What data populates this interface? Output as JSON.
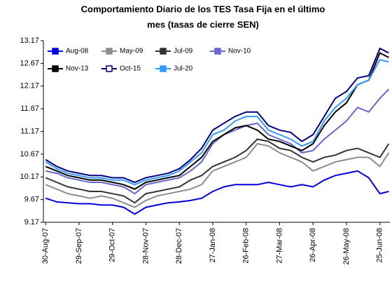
{
  "chart_data": {
    "type": "line",
    "title": [
      "Comportamiento Diario de los TES Tasa Fija en el último",
      "mes (tasas de cierre SEN)"
    ],
    "x": [
      "2007-08-30",
      "2007-09-09",
      "2007-09-19",
      "2007-09-29",
      "2007-10-09",
      "2007-10-19",
      "2007-10-29",
      "2007-11-08",
      "2007-11-18",
      "2007-11-28",
      "2007-12-08",
      "2007-12-18",
      "2007-12-28",
      "2008-01-07",
      "2008-01-17",
      "2008-01-27",
      "2008-02-06",
      "2008-02-16",
      "2008-02-26",
      "2008-03-07",
      "2008-03-17",
      "2008-03-27",
      "2008-04-06",
      "2008-04-16",
      "2008-04-26",
      "2008-05-06",
      "2008-05-16",
      "2008-05-26",
      "2008-06-05",
      "2008-06-15",
      "2008-06-25",
      "2008-07-03"
    ],
    "series": [
      {
        "name": "Aug-08",
        "color": "#0000e0",
        "values": [
          9.7,
          9.62,
          9.6,
          9.58,
          9.58,
          9.55,
          9.55,
          9.5,
          9.35,
          9.5,
          9.55,
          9.6,
          9.62,
          9.65,
          9.7,
          9.85,
          9.95,
          10.0,
          10.0,
          10.0,
          10.05,
          10.0,
          9.95,
          10.0,
          9.95,
          10.1,
          10.2,
          10.25,
          10.3,
          10.15,
          9.8,
          9.85
        ]
      },
      {
        "name": "May-09",
        "color": "#8c8c8c",
        "values": [
          10.0,
          9.9,
          9.8,
          9.75,
          9.7,
          9.75,
          9.7,
          9.6,
          9.5,
          9.65,
          9.75,
          9.8,
          9.85,
          9.9,
          10.0,
          10.3,
          10.4,
          10.5,
          10.6,
          10.9,
          10.85,
          10.7,
          10.6,
          10.5,
          10.3,
          10.4,
          10.5,
          10.55,
          10.6,
          10.6,
          10.4,
          10.7
        ]
      },
      {
        "name": "Jul-09",
        "color": "#333333",
        "values": [
          10.15,
          10.05,
          9.95,
          9.9,
          9.85,
          9.85,
          9.8,
          9.75,
          9.6,
          9.8,
          9.85,
          9.9,
          9.95,
          10.1,
          10.2,
          10.4,
          10.5,
          10.6,
          10.75,
          11.0,
          10.95,
          10.8,
          10.75,
          10.6,
          10.5,
          10.6,
          10.65,
          10.75,
          10.8,
          10.7,
          10.6,
          10.9
        ]
      },
      {
        "name": "Nov-10",
        "color": "#6666cc",
        "values": [
          10.3,
          10.25,
          10.15,
          10.1,
          10.05,
          10.05,
          10.0,
          9.95,
          9.8,
          10.0,
          10.05,
          10.1,
          10.15,
          10.3,
          10.5,
          10.9,
          11.1,
          11.2,
          11.3,
          11.35,
          11.1,
          11.0,
          10.9,
          10.7,
          10.75,
          11.0,
          11.2,
          11.4,
          11.7,
          11.6,
          11.9,
          12.1
        ]
      },
      {
        "name": "Nov-13",
        "color": "#000000",
        "values": [
          10.4,
          10.3,
          10.2,
          10.15,
          10.1,
          10.1,
          10.05,
          10.0,
          9.9,
          10.05,
          10.1,
          10.15,
          10.2,
          10.4,
          10.6,
          10.95,
          11.1,
          11.25,
          11.3,
          11.2,
          11.0,
          10.95,
          10.85,
          10.75,
          10.9,
          11.3,
          11.6,
          11.8,
          12.2,
          12.3,
          12.9,
          12.8
        ]
      },
      {
        "name": "Oct-15",
        "color": "#000080",
        "values": [
          10.55,
          10.4,
          10.3,
          10.25,
          10.2,
          10.2,
          10.15,
          10.15,
          10.05,
          10.15,
          10.2,
          10.25,
          10.35,
          10.55,
          10.8,
          11.2,
          11.35,
          11.5,
          11.6,
          11.6,
          11.3,
          11.2,
          11.15,
          10.95,
          11.1,
          11.5,
          11.9,
          12.05,
          12.35,
          12.4,
          13.0,
          12.9
        ]
      },
      {
        "name": "Jul-20",
        "color": "#3399ff",
        "values": [
          10.5,
          10.35,
          10.25,
          10.2,
          10.15,
          10.15,
          10.1,
          10.1,
          10.0,
          10.1,
          10.15,
          10.2,
          10.3,
          10.5,
          10.7,
          11.1,
          11.2,
          11.4,
          11.5,
          11.5,
          11.2,
          11.1,
          11.0,
          10.85,
          10.95,
          11.4,
          11.7,
          11.9,
          12.2,
          12.3,
          12.75,
          12.7
        ]
      }
    ],
    "xlim": [
      "2007-08-28",
      "2008-07-04"
    ],
    "xticks": [
      {
        "value": "2007-08-30",
        "label": "30-Aug-07"
      },
      {
        "value": "2007-09-29",
        "label": "29-Sep-07"
      },
      {
        "value": "2007-10-29",
        "label": "29-Oct-07"
      },
      {
        "value": "2007-11-28",
        "label": "28-Nov-07"
      },
      {
        "value": "2007-12-28",
        "label": "28-Dec-07"
      },
      {
        "value": "2008-01-27",
        "label": "27-Jan-08"
      },
      {
        "value": "2008-02-26",
        "label": "26-Feb-08"
      },
      {
        "value": "2008-03-27",
        "label": "27-Mar-08"
      },
      {
        "value": "2008-04-26",
        "label": "26-Apr-08"
      },
      {
        "value": "2008-05-26",
        "label": "26-May-08"
      },
      {
        "value": "2008-06-25",
        "label": "25-Jun-08"
      }
    ],
    "ylim": [
      9.17,
      13.17
    ],
    "yticks": [
      9.17,
      9.67,
      10.17,
      10.67,
      11.17,
      11.67,
      12.17,
      12.67,
      13.17
    ],
    "grid": false
  }
}
